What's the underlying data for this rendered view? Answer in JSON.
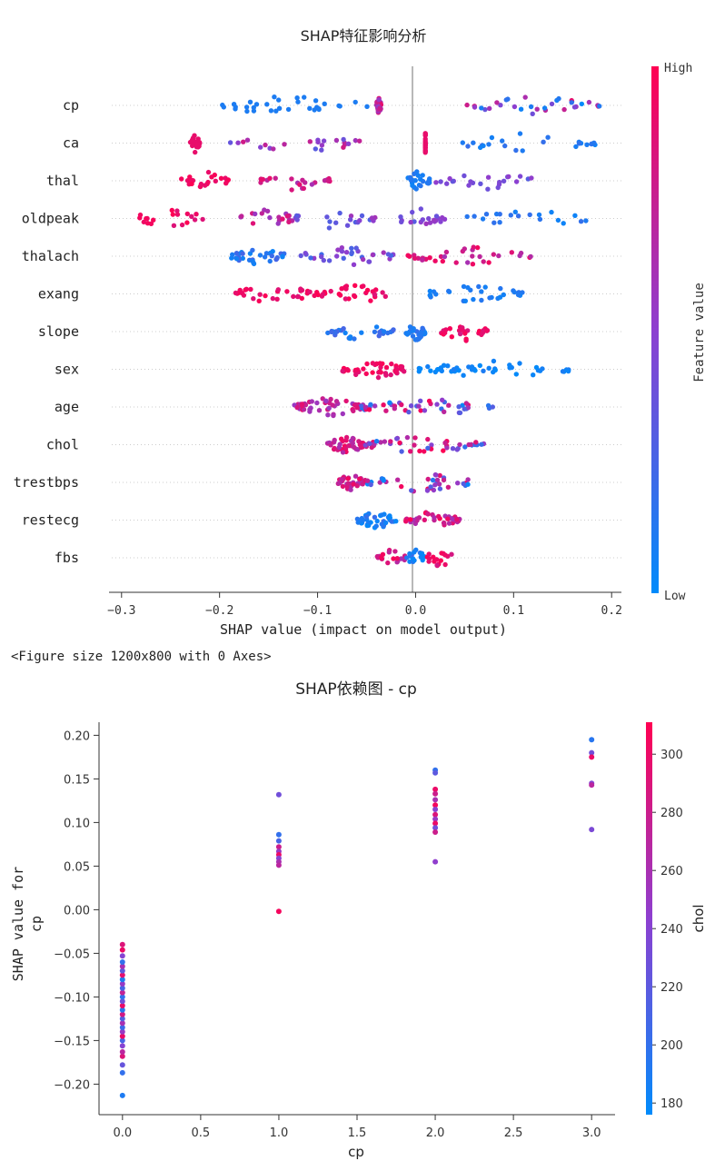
{
  "figure_note": "<Figure size 1200x800 with 0 Axes>",
  "chart_data": [
    {
      "type": "scatter",
      "subtype": "shap-beeswarm",
      "title": "SHAP特征影响分析",
      "xlabel": "SHAP value (impact on model output)",
      "xlim": [
        -0.31,
        0.21
      ],
      "xticks": [
        -0.3,
        -0.2,
        -0.1,
        0.0,
        0.1,
        0.2
      ],
      "xtick_labels": [
        "−0.3",
        "−0.2",
        "−0.1",
        "0.0",
        "0.1",
        "0.2"
      ],
      "features": [
        "cp",
        "ca",
        "thal",
        "oldpeak",
        "thalach",
        "exang",
        "slope",
        "sex",
        "age",
        "chol",
        "trestbps",
        "restecg",
        "fbs"
      ],
      "colorbar": {
        "label": "Feature value",
        "high_label": "High",
        "low_label": "Low",
        "low_color": "#008bfb",
        "high_color": "#ff0052"
      },
      "groups": {
        "cp": [
          [
            -0.215,
            -0.045,
            0.1,
            0.1
          ],
          [
            -0.035,
            -0.04,
            0.5,
            0.9
          ],
          [
            0.05,
            0.19,
            0.0,
            0.9
          ]
        ],
        "ca": [
          [
            -0.23,
            -0.22,
            0.9,
            0.9
          ],
          [
            -0.19,
            -0.04,
            0.3,
            0.8
          ],
          [
            0.035,
            0.185,
            0.05,
            0.2
          ],
          [
            0.01,
            0.01,
            0.9,
            0.9
          ]
        ],
        "thal": [
          [
            -0.24,
            -0.19,
            0.9,
            1.0
          ],
          [
            -0.16,
            -0.085,
            0.6,
            0.9
          ],
          [
            0.02,
            0.125,
            0.3,
            0.55
          ],
          [
            -0.01,
            0.015,
            0.05,
            0.15
          ]
        ],
        "oldpeak": [
          [
            -0.29,
            -0.21,
            0.85,
            1.0
          ],
          [
            -0.18,
            -0.12,
            0.55,
            0.9
          ],
          [
            -0.13,
            -0.04,
            0.25,
            0.6
          ],
          [
            -0.02,
            0.03,
            0.3,
            0.6
          ],
          [
            0.03,
            0.18,
            0.05,
            0.2
          ]
        ],
        "thalach": [
          [
            -0.19,
            -0.13,
            0.05,
            0.25
          ],
          [
            -0.12,
            -0.02,
            0.2,
            0.6
          ],
          [
            -0.01,
            0.12,
            0.6,
            1.0
          ]
        ],
        "exang": [
          [
            -0.19,
            -0.1,
            0.85,
            1.0
          ],
          [
            -0.1,
            -0.02,
            0.85,
            1.0
          ],
          [
            0.005,
            0.11,
            0.05,
            0.15
          ]
        ],
        "slope": [
          [
            -0.09,
            -0.02,
            0.05,
            0.25
          ],
          [
            -0.01,
            0.01,
            0.05,
            0.2
          ],
          [
            0.025,
            0.075,
            0.8,
            1.0
          ]
        ],
        "sex": [
          [
            -0.075,
            -0.01,
            0.85,
            1.0
          ],
          [
            0.0,
            0.16,
            0.0,
            0.1
          ]
        ],
        "age": [
          [
            -0.125,
            -0.05,
            0.5,
            0.9
          ],
          [
            -0.06,
            0.085,
            0.0,
            1.0
          ]
        ],
        "chol": [
          [
            -0.09,
            -0.05,
            0.6,
            0.95
          ],
          [
            -0.055,
            0.07,
            0.0,
            1.0
          ]
        ],
        "trestbps": [
          [
            -0.08,
            -0.05,
            0.6,
            0.95
          ],
          [
            -0.05,
            0.06,
            0.0,
            1.0
          ]
        ],
        "restecg": [
          [
            -0.06,
            -0.02,
            0.0,
            0.2
          ],
          [
            -0.01,
            0.045,
            0.6,
            1.0
          ]
        ],
        "fbs": [
          [
            -0.04,
            -0.01,
            0.6,
            1.0
          ],
          [
            -0.01,
            0.01,
            0.0,
            0.2
          ],
          [
            0.01,
            0.04,
            0.8,
            1.0
          ]
        ]
      },
      "point_counts": [
        95,
        95,
        90,
        100,
        100,
        90,
        85,
        90,
        95,
        90,
        75,
        75,
        55
      ]
    },
    {
      "type": "scatter",
      "subtype": "shap-dependence",
      "title": "SHAP依赖图 - cp",
      "xlabel": "cp",
      "ylabel_lines": [
        "SHAP value for",
        "cp"
      ],
      "xlim": [
        -0.15,
        3.15
      ],
      "ylim": [
        -0.235,
        0.215
      ],
      "xticks": [
        0.0,
        0.5,
        1.0,
        1.5,
        2.0,
        2.5,
        3.0
      ],
      "xtick_labels": [
        "0.0",
        "0.5",
        "1.0",
        "1.5",
        "2.0",
        "2.5",
        "3.0"
      ],
      "yticks": [
        -0.2,
        -0.15,
        -0.1,
        -0.05,
        0.0,
        0.05,
        0.1,
        0.15,
        0.2
      ],
      "ytick_labels": [
        "−0.20",
        "−0.15",
        "−0.10",
        "−0.05",
        "0.00",
        "0.05",
        "0.10",
        "0.15",
        "0.20"
      ],
      "colorbar": {
        "label": "chol",
        "min": 176,
        "max": 311,
        "ticks": [
          180,
          200,
          220,
          240,
          260,
          280,
          300
        ],
        "tick_labels": [
          "180",
          "200",
          "220",
          "240",
          "260",
          "280",
          "300"
        ]
      },
      "points": [
        [
          0,
          -0.213,
          190
        ],
        [
          0,
          -0.187,
          200
        ],
        [
          0,
          -0.178,
          225
        ],
        [
          0,
          -0.168,
          290
        ],
        [
          0,
          -0.163,
          270
        ],
        [
          0,
          -0.156,
          240
        ],
        [
          0,
          -0.15,
          210
        ],
        [
          0,
          -0.145,
          300
        ],
        [
          0,
          -0.14,
          250
        ],
        [
          0,
          -0.135,
          205
        ],
        [
          0,
          -0.13,
          260
        ],
        [
          0,
          -0.125,
          215
        ],
        [
          0,
          -0.12,
          285
        ],
        [
          0,
          -0.115,
          195
        ],
        [
          0,
          -0.11,
          300
        ],
        [
          0,
          -0.105,
          230
        ],
        [
          0,
          -0.1,
          200
        ],
        [
          0,
          -0.095,
          275
        ],
        [
          0,
          -0.09,
          210
        ],
        [
          0,
          -0.085,
          250
        ],
        [
          0,
          -0.08,
          190
        ],
        [
          0,
          -0.075,
          295
        ],
        [
          0,
          -0.07,
          220
        ],
        [
          0,
          -0.065,
          260
        ],
        [
          0,
          -0.06,
          200
        ],
        [
          0,
          -0.053,
          240
        ],
        [
          0,
          -0.046,
          300
        ],
        [
          0,
          -0.04,
          290
        ],
        [
          1,
          0.132,
          230
        ],
        [
          1,
          0.086,
          200
        ],
        [
          1,
          0.079,
          210
        ],
        [
          1,
          0.072,
          280
        ],
        [
          1,
          0.067,
          250
        ],
        [
          1,
          0.063,
          300
        ],
        [
          1,
          0.059,
          240
        ],
        [
          1,
          0.055,
          260
        ],
        [
          1,
          0.051,
          270
        ],
        [
          1,
          -0.002,
          305
        ],
        [
          2,
          0.16,
          200
        ],
        [
          2,
          0.157,
          220
        ],
        [
          2,
          0.138,
          300
        ],
        [
          2,
          0.133,
          280
        ],
        [
          2,
          0.126,
          260
        ],
        [
          2,
          0.12,
          305
        ],
        [
          2,
          0.115,
          240
        ],
        [
          2,
          0.109,
          290
        ],
        [
          2,
          0.104,
          250
        ],
        [
          2,
          0.099,
          300
        ],
        [
          2,
          0.094,
          230
        ],
        [
          2,
          0.089,
          280
        ],
        [
          2,
          0.055,
          245
        ],
        [
          3,
          0.195,
          195
        ],
        [
          3,
          0.18,
          230
        ],
        [
          3,
          0.175,
          300
        ],
        [
          3,
          0.145,
          240
        ],
        [
          3,
          0.143,
          270
        ],
        [
          3,
          0.092,
          235
        ]
      ]
    }
  ]
}
